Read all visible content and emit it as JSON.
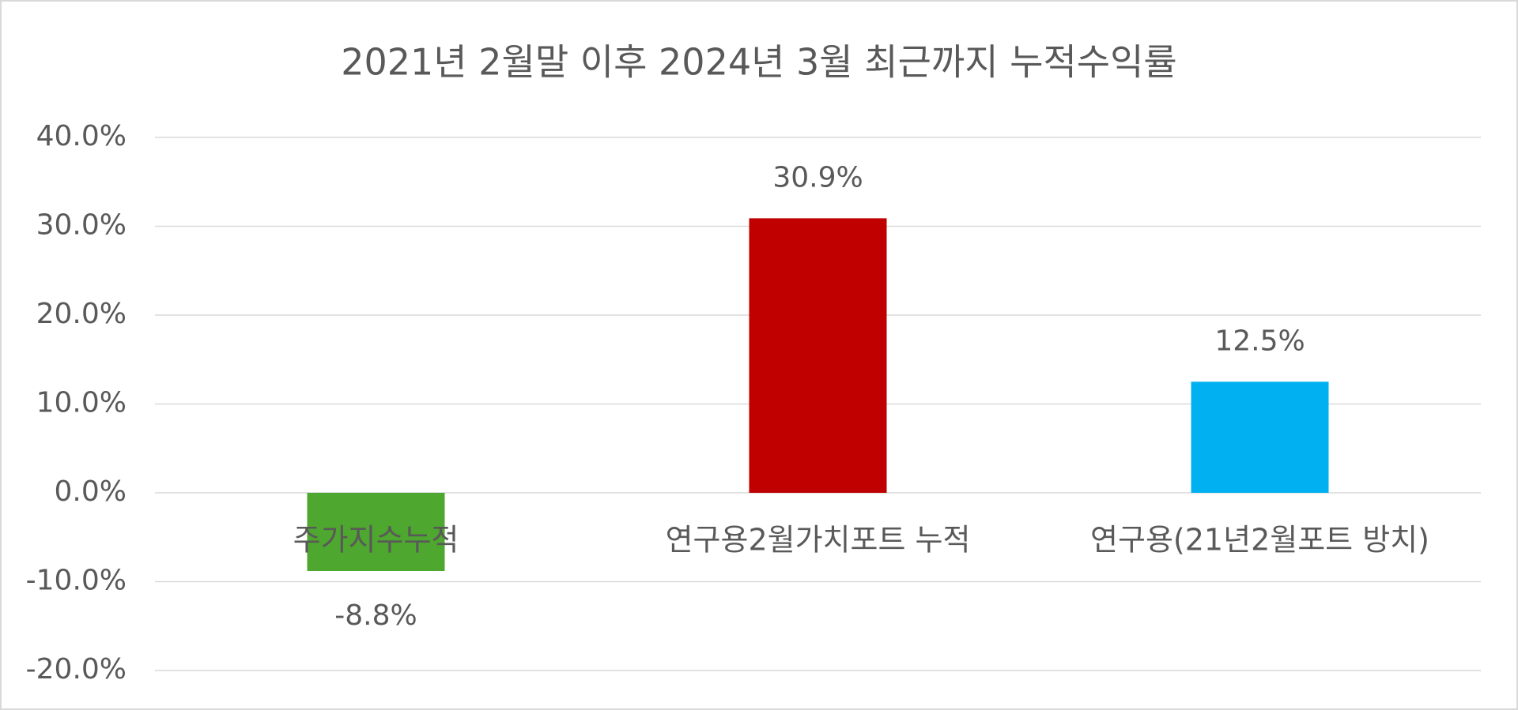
{
  "chart_data": {
    "type": "bar",
    "title": "2021년 2월말 이후 2024년 3월 최근까지 누적수익률",
    "categories": [
      "주가지수누적",
      "연구용2월가치포트 누적",
      "연구용(21년2월포트 방치)"
    ],
    "values": [
      -8.8,
      30.9,
      12.5
    ],
    "value_labels": [
      "-8.8%",
      "30.9%",
      "12.5%"
    ],
    "colors": [
      "#4ea72e",
      "#c00000",
      "#00b0f0"
    ],
    "ylim": [
      -20,
      40
    ],
    "yticks": [
      {
        "value": -20,
        "label": "-20.0%"
      },
      {
        "value": -10,
        "label": "-10.0%"
      },
      {
        "value": 0,
        "label": "0.0%"
      },
      {
        "value": 10,
        "label": "10.0%"
      },
      {
        "value": 20,
        "label": "20.0%"
      },
      {
        "value": 30,
        "label": "30.0%"
      },
      {
        "value": 40,
        "label": "40.0%"
      }
    ],
    "grid": true
  }
}
